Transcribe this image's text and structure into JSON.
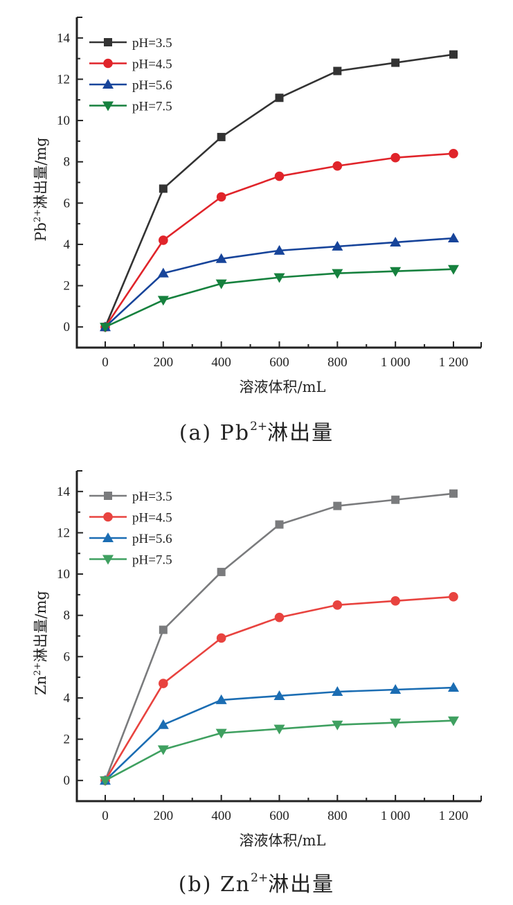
{
  "chart_data": [
    {
      "type": "line",
      "id": "a",
      "title": "",
      "caption": {
        "prefix": "(a) Pb",
        "superscript": "2+",
        "suffix": "淋出量"
      },
      "xlabel": "溶液体积/mL",
      "ylabel": {
        "prefix": "Pb",
        "superscript": "2+",
        "suffix": "淋出量/mg"
      },
      "x": [
        0,
        200,
        400,
        600,
        800,
        1000,
        1200
      ],
      "x_tick_labels": [
        "0",
        "200",
        "400",
        "600",
        "800",
        "1 000",
        "1 200"
      ],
      "y_ticks": [
        0,
        2,
        4,
        6,
        8,
        10,
        12,
        14
      ],
      "y_tick_labels": [
        "0",
        "2",
        "4",
        "6",
        "8",
        "10",
        "12",
        "14"
      ],
      "xlim": [
        -100,
        1300
      ],
      "ylim": [
        -1,
        15
      ],
      "grid": false,
      "legend_position": "top-left",
      "series": [
        {
          "name": "pH=3.5",
          "color": "#333333",
          "marker": "square",
          "values": [
            0,
            6.7,
            9.2,
            11.1,
            12.4,
            12.8,
            13.2
          ]
        },
        {
          "name": "pH=4.5",
          "color": "#e0242a",
          "marker": "circle",
          "values": [
            0,
            4.2,
            6.3,
            7.3,
            7.8,
            8.2,
            8.4
          ]
        },
        {
          "name": "pH=5.6",
          "color": "#17449a",
          "marker": "triangle-up",
          "values": [
            0,
            2.6,
            3.3,
            3.7,
            3.9,
            4.1,
            4.3
          ]
        },
        {
          "name": "pH=7.5",
          "color": "#16813e",
          "marker": "triangle-down",
          "values": [
            0,
            1.3,
            2.1,
            2.4,
            2.6,
            2.7,
            2.8
          ]
        }
      ]
    },
    {
      "type": "line",
      "id": "b",
      "title": "",
      "caption": {
        "prefix": "(b) Zn",
        "superscript": "2+",
        "suffix": "淋出量"
      },
      "xlabel": "溶液体积/mL",
      "ylabel": {
        "prefix": "Zn",
        "superscript": "2+",
        "suffix": "淋出量/mg"
      },
      "x": [
        0,
        200,
        400,
        600,
        800,
        1000,
        1200
      ],
      "x_tick_labels": [
        "0",
        "200",
        "400",
        "600",
        "800",
        "1 000",
        "1 200"
      ],
      "y_ticks": [
        0,
        2,
        4,
        6,
        8,
        10,
        12,
        14
      ],
      "y_tick_labels": [
        "0",
        "2",
        "4",
        "6",
        "8",
        "10",
        "12",
        "14"
      ],
      "xlim": [
        -100,
        1300
      ],
      "ylim": [
        -1,
        15
      ],
      "grid": false,
      "legend_position": "top-left",
      "series": [
        {
          "name": "pH=3.5",
          "color": "#7a7b7d",
          "marker": "square",
          "values": [
            0,
            7.3,
            10.1,
            12.4,
            13.3,
            13.6,
            13.9
          ]
        },
        {
          "name": "pH=4.5",
          "color": "#e8433f",
          "marker": "circle",
          "values": [
            0,
            4.7,
            6.9,
            7.9,
            8.5,
            8.7,
            8.9
          ]
        },
        {
          "name": "pH=5.6",
          "color": "#1b6db3",
          "marker": "triangle-up",
          "values": [
            0,
            2.7,
            3.9,
            4.1,
            4.3,
            4.4,
            4.5
          ]
        },
        {
          "name": "pH=7.5",
          "color": "#3fa060",
          "marker": "triangle-down",
          "values": [
            0,
            1.5,
            2.3,
            2.5,
            2.7,
            2.8,
            2.9
          ]
        }
      ]
    }
  ]
}
